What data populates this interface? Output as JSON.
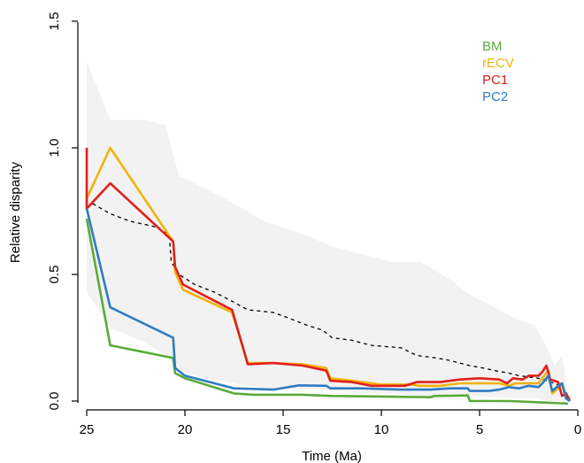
{
  "chart_data": {
    "type": "line",
    "title": "",
    "xlabel": "Time (Ma)",
    "ylabel": "Relative disparity",
    "xlim": [
      25,
      0
    ],
    "ylim": [
      0,
      1.5
    ],
    "x_ticks": [
      25,
      20,
      15,
      10,
      5,
      0
    ],
    "x_tick_labels": [
      "25",
      "20",
      "15",
      "10",
      "5",
      "0"
    ],
    "y_ticks": [
      0,
      0.5,
      1.0,
      1.5
    ],
    "y_tick_labels": [
      "0.0",
      "0.5",
      "1.0",
      "1.5"
    ],
    "grid": false,
    "legend_position": "top-right",
    "envelope": {
      "color": "#f2f2f2",
      "upper": [
        [
          25.0,
          1.34
        ],
        [
          23.8,
          1.11
        ],
        [
          22.0,
          1.11
        ],
        [
          21.0,
          1.09
        ],
        [
          20.3,
          0.89
        ],
        [
          19.0,
          0.84
        ],
        [
          17.5,
          0.78
        ],
        [
          16.0,
          0.71
        ],
        [
          14.0,
          0.66
        ],
        [
          12.5,
          0.61
        ],
        [
          11.0,
          0.58
        ],
        [
          9.5,
          0.55
        ],
        [
          8.0,
          0.55
        ],
        [
          6.5,
          0.48
        ],
        [
          5.5,
          0.42
        ],
        [
          4.0,
          0.36
        ],
        [
          3.0,
          0.32
        ],
        [
          2.2,
          0.3
        ],
        [
          1.5,
          0.2
        ],
        [
          1.2,
          0.14
        ],
        [
          0.8,
          0.18
        ],
        [
          0.5,
          0.04
        ]
      ],
      "lower": [
        [
          25.0,
          0.43
        ],
        [
          23.8,
          0.29
        ],
        [
          22.0,
          0.23
        ],
        [
          21.0,
          0.18
        ],
        [
          20.3,
          0.12
        ],
        [
          19.0,
          0.09
        ],
        [
          17.5,
          0.07
        ],
        [
          16.0,
          0.05
        ],
        [
          14.0,
          0.05
        ],
        [
          12.5,
          0.04
        ],
        [
          11.0,
          0.03
        ],
        [
          9.5,
          0.03
        ],
        [
          8.0,
          0.02
        ],
        [
          6.5,
          0.02
        ],
        [
          5.5,
          0.02
        ],
        [
          4.0,
          0.015
        ],
        [
          3.0,
          0.01
        ],
        [
          2.2,
          0.01
        ],
        [
          1.5,
          0.0
        ],
        [
          1.2,
          0.0
        ],
        [
          0.8,
          0.0
        ],
        [
          0.5,
          0.0
        ]
      ]
    },
    "dashed_series": {
      "color": "#000000",
      "points": [
        [
          24.7,
          0.78
        ],
        [
          23.8,
          0.74
        ],
        [
          22.8,
          0.71
        ],
        [
          21.6,
          0.69
        ],
        [
          20.8,
          0.66
        ],
        [
          20.7,
          0.55
        ],
        [
          20.3,
          0.5
        ],
        [
          19.5,
          0.46
        ],
        [
          18.5,
          0.43
        ],
        [
          17.5,
          0.39
        ],
        [
          16.8,
          0.36
        ],
        [
          15.5,
          0.35
        ],
        [
          14.8,
          0.33
        ],
        [
          13.8,
          0.3
        ],
        [
          13.0,
          0.28
        ],
        [
          12.5,
          0.25
        ],
        [
          11.5,
          0.24
        ],
        [
          10.5,
          0.22
        ],
        [
          9.0,
          0.21
        ],
        [
          8.2,
          0.18
        ],
        [
          7.2,
          0.17
        ],
        [
          6.5,
          0.16
        ],
        [
          6.0,
          0.15
        ],
        [
          5.5,
          0.14
        ],
        [
          4.8,
          0.13
        ],
        [
          4.2,
          0.12
        ],
        [
          3.5,
          0.11
        ],
        [
          3.0,
          0.1
        ],
        [
          2.5,
          0.095
        ],
        [
          2.0,
          0.09
        ],
        [
          1.6,
          0.08
        ],
        [
          1.2,
          0.07
        ],
        [
          0.9,
          0.06
        ]
      ]
    },
    "series": [
      {
        "name": "BM",
        "color": "#5aaa3a",
        "points": [
          [
            25.0,
            0.72
          ],
          [
            23.8,
            0.22
          ],
          [
            20.6,
            0.17
          ],
          [
            20.5,
            0.11
          ],
          [
            20.0,
            0.09
          ],
          [
            17.5,
            0.03
          ],
          [
            16.5,
            0.025
          ],
          [
            14.0,
            0.025
          ],
          [
            12.5,
            0.02
          ],
          [
            10.0,
            0.018
          ],
          [
            7.5,
            0.015
          ],
          [
            7.3,
            0.02
          ],
          [
            5.6,
            0.022
          ],
          [
            5.5,
            0.0
          ],
          [
            3.5,
            0.0
          ],
          [
            2.0,
            -0.005
          ],
          [
            0.5,
            -0.01
          ]
        ]
      },
      {
        "name": "rECV",
        "color": "#f2b20d",
        "points": [
          [
            25.0,
            0.76
          ],
          [
            25.0,
            0.8
          ],
          [
            23.8,
            1.0
          ],
          [
            20.6,
            0.63
          ],
          [
            20.5,
            0.51
          ],
          [
            20.1,
            0.44
          ],
          [
            17.6,
            0.35
          ],
          [
            16.8,
            0.15
          ],
          [
            15.5,
            0.15
          ],
          [
            14.0,
            0.145
          ],
          [
            12.8,
            0.13
          ],
          [
            12.6,
            0.09
          ],
          [
            11.5,
            0.08
          ],
          [
            10.0,
            0.065
          ],
          [
            8.5,
            0.065
          ],
          [
            8.0,
            0.06
          ],
          [
            7.0,
            0.06
          ],
          [
            6.0,
            0.07
          ],
          [
            5.0,
            0.07
          ],
          [
            4.0,
            0.07
          ],
          [
            3.5,
            0.06
          ],
          [
            3.2,
            0.07
          ],
          [
            2.0,
            0.07
          ],
          [
            1.8,
            0.09
          ],
          [
            1.5,
            0.12
          ],
          [
            1.3,
            0.03
          ],
          [
            1.0,
            0.05
          ],
          [
            0.8,
            0.07
          ],
          [
            0.6,
            0.02
          ],
          [
            0.4,
            0.01
          ]
        ]
      },
      {
        "name": "PC1",
        "color": "#e0201b",
        "points": [
          [
            25.0,
            1.0
          ],
          [
            25.0,
            0.76
          ],
          [
            23.8,
            0.86
          ],
          [
            20.6,
            0.63
          ],
          [
            20.5,
            0.53
          ],
          [
            20.1,
            0.46
          ],
          [
            17.6,
            0.36
          ],
          [
            16.8,
            0.145
          ],
          [
            15.5,
            0.15
          ],
          [
            14.0,
            0.14
          ],
          [
            12.8,
            0.12
          ],
          [
            12.6,
            0.08
          ],
          [
            11.5,
            0.075
          ],
          [
            10.5,
            0.06
          ],
          [
            8.8,
            0.06
          ],
          [
            8.2,
            0.075
          ],
          [
            7.0,
            0.075
          ],
          [
            6.5,
            0.08
          ],
          [
            6.0,
            0.085
          ],
          [
            5.0,
            0.09
          ],
          [
            4.0,
            0.085
          ],
          [
            3.6,
            0.07
          ],
          [
            3.3,
            0.09
          ],
          [
            2.8,
            0.085
          ],
          [
            2.5,
            0.1
          ],
          [
            2.0,
            0.1
          ],
          [
            1.8,
            0.115
          ],
          [
            1.6,
            0.14
          ],
          [
            1.4,
            0.085
          ],
          [
            1.2,
            0.08
          ],
          [
            1.0,
            0.075
          ],
          [
            0.8,
            0.02
          ],
          [
            0.6,
            0.03
          ],
          [
            0.4,
            0.0
          ]
        ]
      },
      {
        "name": "PC2",
        "color": "#2f7cc1",
        "points": [
          [
            25.0,
            0.76
          ],
          [
            23.8,
            0.37
          ],
          [
            20.6,
            0.25
          ],
          [
            20.5,
            0.13
          ],
          [
            20.0,
            0.1
          ],
          [
            17.5,
            0.05
          ],
          [
            15.5,
            0.045
          ],
          [
            14.2,
            0.062
          ],
          [
            12.8,
            0.06
          ],
          [
            12.6,
            0.05
          ],
          [
            11.0,
            0.05
          ],
          [
            9.0,
            0.045
          ],
          [
            7.5,
            0.045
          ],
          [
            6.5,
            0.05
          ],
          [
            5.6,
            0.05
          ],
          [
            5.5,
            0.04
          ],
          [
            4.5,
            0.04
          ],
          [
            4.0,
            0.045
          ],
          [
            3.5,
            0.055
          ],
          [
            3.0,
            0.05
          ],
          [
            2.5,
            0.06
          ],
          [
            2.0,
            0.055
          ],
          [
            1.8,
            0.07
          ],
          [
            1.5,
            0.1
          ],
          [
            1.3,
            0.04
          ],
          [
            1.0,
            0.06
          ],
          [
            0.8,
            0.07
          ],
          [
            0.6,
            0.01
          ],
          [
            0.4,
            0.0
          ]
        ]
      }
    ]
  }
}
